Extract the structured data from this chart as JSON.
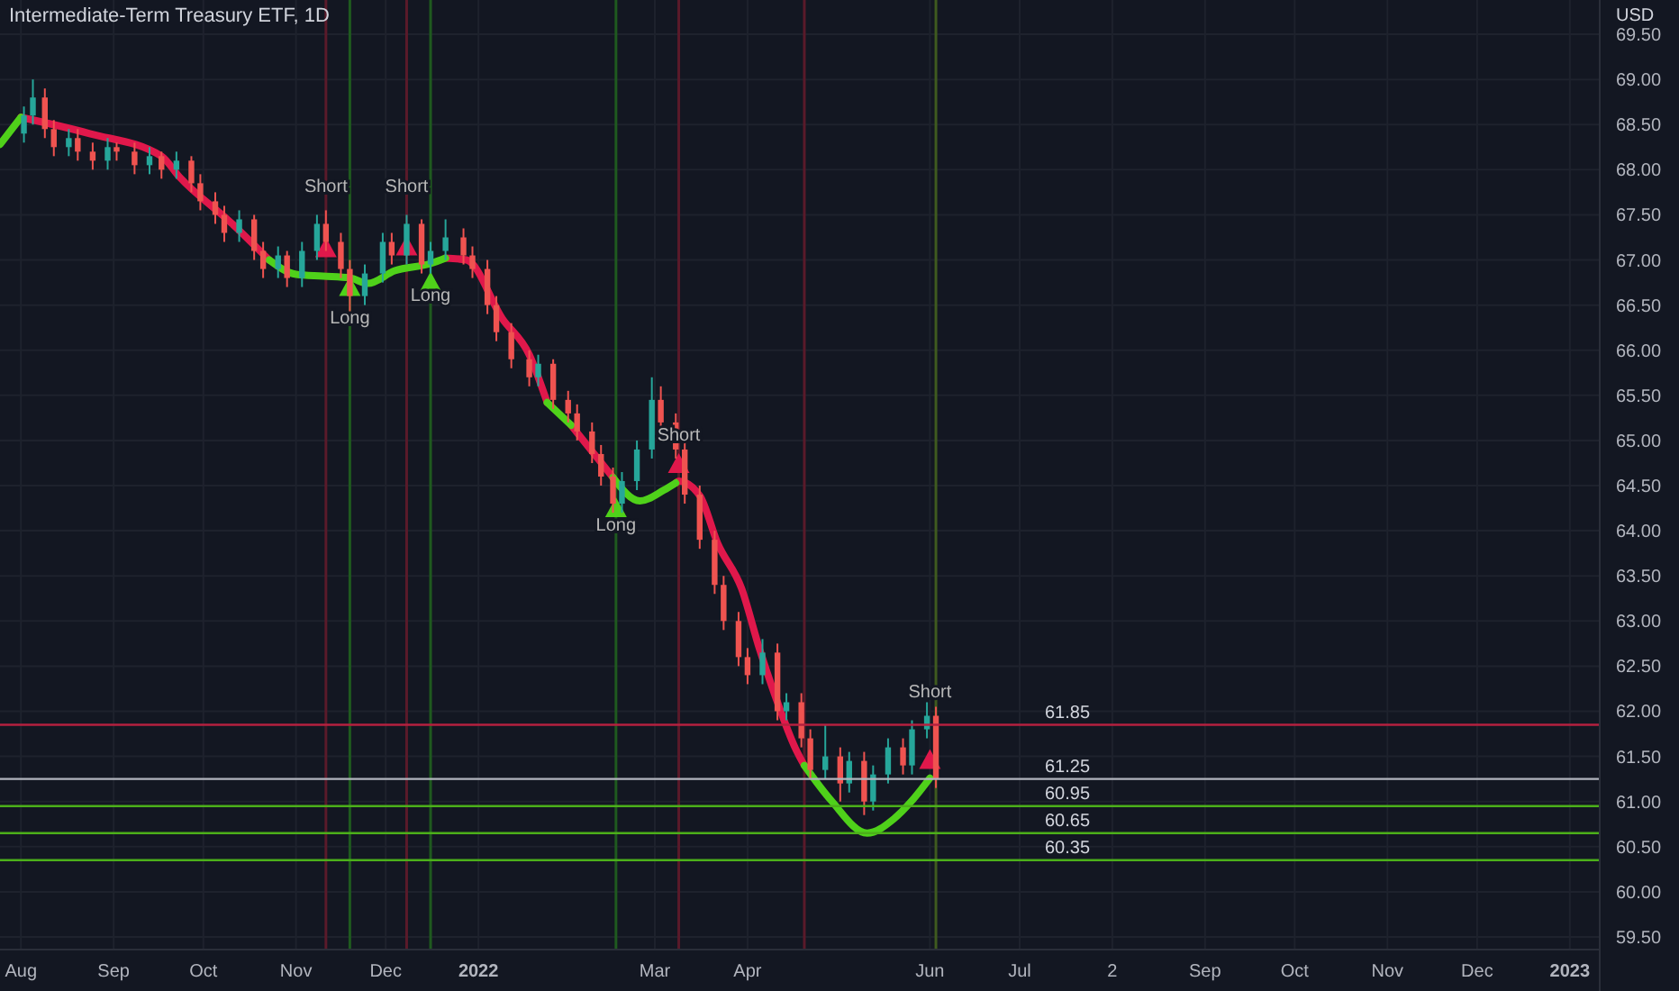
{
  "chart_data": {
    "type": "candlestick",
    "title": "Intermediate-Term Treasury ETF, 1D",
    "ylabel": "USD",
    "x": [
      "2021-08-02",
      "2021-08-05",
      "2021-08-09",
      "2021-08-12",
      "2021-08-17",
      "2021-08-20",
      "2021-08-25",
      "2021-08-30",
      "2021-09-02",
      "2021-09-08",
      "2021-09-13",
      "2021-09-17",
      "2021-09-22",
      "2021-09-27",
      "2021-09-30",
      "2021-10-05",
      "2021-10-08",
      "2021-10-13",
      "2021-10-18",
      "2021-10-21",
      "2021-10-26",
      "2021-10-29",
      "2021-11-03",
      "2021-11-08",
      "2021-11-11",
      "2021-11-16",
      "2021-11-19",
      "2021-11-24",
      "2021-11-30",
      "2021-12-03",
      "2021-12-08",
      "2021-12-13",
      "2021-12-16",
      "2021-12-21",
      "2021-12-27",
      "2021-12-30",
      "2022-01-04",
      "2022-01-07",
      "2022-01-12",
      "2022-01-18",
      "2022-01-21",
      "2022-01-26",
      "2022-01-31",
      "2022-02-03",
      "2022-02-08",
      "2022-02-11",
      "2022-02-15",
      "2022-02-18",
      "2022-02-23",
      "2022-02-28",
      "2022-03-03",
      "2022-03-08",
      "2022-03-11",
      "2022-03-16",
      "2022-03-21",
      "2022-03-24",
      "2022-03-29",
      "2022-04-01",
      "2022-04-06",
      "2022-04-11",
      "2022-04-14",
      "2022-04-19",
      "2022-04-22",
      "2022-04-27",
      "2022-05-02",
      "2022-05-05",
      "2022-05-10",
      "2022-05-13",
      "2022-05-18",
      "2022-05-23",
      "2022-05-26",
      "2022-05-31",
      "2022-06-03"
    ],
    "ohlc": [
      [
        68.4,
        68.7,
        68.3,
        68.6
      ],
      [
        68.6,
        69.0,
        68.5,
        68.8
      ],
      [
        68.8,
        68.9,
        68.35,
        68.45
      ],
      [
        68.45,
        68.55,
        68.15,
        68.25
      ],
      [
        68.25,
        68.45,
        68.15,
        68.35
      ],
      [
        68.35,
        68.45,
        68.1,
        68.2
      ],
      [
        68.2,
        68.3,
        68.0,
        68.1
      ],
      [
        68.1,
        68.35,
        68.0,
        68.25
      ],
      [
        68.25,
        68.3,
        68.1,
        68.2
      ],
      [
        68.2,
        68.3,
        67.95,
        68.05
      ],
      [
        68.05,
        68.25,
        67.95,
        68.15
      ],
      [
        68.15,
        68.2,
        67.9,
        68.0
      ],
      [
        68.0,
        68.2,
        67.9,
        68.1
      ],
      [
        68.1,
        68.15,
        67.75,
        67.85
      ],
      [
        67.85,
        67.95,
        67.55,
        67.65
      ],
      [
        67.65,
        67.75,
        67.4,
        67.5
      ],
      [
        67.5,
        67.6,
        67.2,
        67.3
      ],
      [
        67.3,
        67.55,
        67.2,
        67.45
      ],
      [
        67.45,
        67.5,
        67.0,
        67.1
      ],
      [
        67.1,
        67.2,
        66.8,
        66.9
      ],
      [
        66.9,
        67.15,
        66.8,
        67.05
      ],
      [
        67.05,
        67.1,
        66.7,
        66.8
      ],
      [
        66.8,
        67.2,
        66.7,
        67.1
      ],
      [
        67.1,
        67.5,
        67.0,
        67.4
      ],
      [
        67.4,
        67.55,
        67.1,
        67.2
      ],
      [
        67.2,
        67.3,
        66.8,
        66.9
      ],
      [
        66.9,
        67.0,
        66.4,
        66.6
      ],
      [
        66.6,
        66.95,
        66.5,
        66.85
      ],
      [
        66.85,
        67.3,
        66.75,
        67.2
      ],
      [
        67.2,
        67.3,
        66.95,
        67.05
      ],
      [
        67.05,
        67.5,
        66.95,
        67.4
      ],
      [
        67.4,
        67.45,
        66.85,
        66.95
      ],
      [
        66.95,
        67.2,
        66.85,
        67.1
      ],
      [
        67.1,
        67.45,
        67.0,
        67.25
      ],
      [
        67.25,
        67.35,
        66.95,
        67.05
      ],
      [
        67.05,
        67.15,
        66.8,
        66.9
      ],
      [
        66.9,
        67.0,
        66.4,
        66.5
      ],
      [
        66.5,
        66.6,
        66.1,
        66.2
      ],
      [
        66.2,
        66.3,
        65.8,
        65.9
      ],
      [
        65.9,
        66.0,
        65.6,
        65.7
      ],
      [
        65.7,
        65.95,
        65.6,
        65.85
      ],
      [
        65.85,
        65.9,
        65.35,
        65.45
      ],
      [
        65.45,
        65.55,
        65.2,
        65.3
      ],
      [
        65.3,
        65.4,
        65.0,
        65.1
      ],
      [
        65.1,
        65.2,
        64.75,
        64.85
      ],
      [
        64.85,
        64.95,
        64.5,
        64.6
      ],
      [
        64.6,
        64.7,
        64.2,
        64.3
      ],
      [
        64.3,
        64.65,
        64.2,
        64.55
      ],
      [
        64.55,
        65.0,
        64.45,
        64.9
      ],
      [
        64.9,
        65.7,
        64.8,
        65.45
      ],
      [
        65.45,
        65.6,
        65.1,
        65.2
      ],
      [
        65.2,
        65.3,
        64.8,
        64.9
      ],
      [
        64.9,
        65.0,
        64.3,
        64.4
      ],
      [
        64.4,
        64.5,
        63.8,
        63.9
      ],
      [
        63.9,
        64.0,
        63.3,
        63.4
      ],
      [
        63.4,
        63.5,
        62.9,
        63.0
      ],
      [
        63.0,
        63.1,
        62.5,
        62.6
      ],
      [
        62.6,
        62.7,
        62.3,
        62.4
      ],
      [
        62.4,
        62.8,
        62.3,
        62.65
      ],
      [
        62.65,
        62.75,
        61.9,
        62.0
      ],
      [
        62.0,
        62.2,
        61.9,
        62.1
      ],
      [
        62.1,
        62.2,
        61.6,
        61.7
      ],
      [
        61.7,
        61.8,
        61.25,
        61.35
      ],
      [
        61.35,
        61.85,
        61.25,
        61.5
      ],
      [
        61.5,
        61.6,
        61.0,
        61.2
      ],
      [
        61.2,
        61.55,
        61.1,
        61.45
      ],
      [
        61.45,
        61.55,
        60.85,
        61.0
      ],
      [
        61.0,
        61.4,
        60.9,
        61.3
      ],
      [
        61.3,
        61.7,
        61.2,
        61.6
      ],
      [
        61.6,
        61.7,
        61.3,
        61.4
      ],
      [
        61.4,
        61.9,
        61.3,
        61.8
      ],
      [
        61.8,
        62.1,
        61.7,
        61.95
      ],
      [
        61.95,
        62.05,
        61.15,
        61.25
      ]
    ],
    "series": [
      {
        "type": "line",
        "color": "#e0184b",
        "x": [
          "2021-08-01",
          "2021-08-24",
          "2021-09-17",
          "2021-09-23",
          "2021-10-11",
          "2021-10-23",
          "2021-11-10",
          "2021-12-21",
          "2021-12-28",
          "2022-01-09",
          "2022-01-18",
          "2022-01-24",
          "2022-01-28",
          "2022-02-01",
          "2022-02-15",
          "2022-02-20",
          "2022-03-08",
          "2022-03-09",
          "2022-03-16",
          "2022-03-22",
          "2022-03-30",
          "2022-04-05",
          "2022-04-11",
          "2022-04-17",
          "2022-04-20"
        ],
        "values": [
          68.58,
          68.4,
          68.15,
          67.92,
          67.39,
          67.0,
          null,
          67.02,
          67.0,
          66.35,
          65.95,
          65.42,
          null,
          65.17,
          64.59,
          null,
          64.53,
          64.55,
          64.39,
          63.86,
          63.36,
          62.69,
          62.1,
          61.59,
          61.4
        ]
      },
      {
        "type": "line",
        "color": "#4fd11a",
        "x": [
          "2021-07-25",
          "2021-08-01",
          "2021-08-10",
          "2021-10-23",
          "2021-11-01",
          "2021-11-10",
          "2021-11-19",
          "2021-11-25",
          "2021-12-04",
          "2021-12-16",
          "2021-12-21",
          "2021-12-25",
          "2022-01-24",
          "2022-02-01",
          "2022-02-08",
          "2022-02-15",
          "2022-02-24",
          "2022-03-04",
          "2022-03-08",
          "2022-03-14",
          "2022-04-20",
          "2022-04-29",
          "2022-05-11",
          "2022-05-20",
          "2022-05-26",
          "2022-06-01"
        ],
        "values": [
          68.28,
          68.58,
          null,
          67.0,
          66.84,
          66.82,
          66.8,
          66.74,
          66.88,
          66.96,
          67.02,
          null,
          65.42,
          65.17,
          null,
          64.59,
          64.33,
          64.45,
          64.53,
          null,
          61.4,
          61.01,
          60.65,
          60.81,
          61.01,
          61.26
        ]
      },
      {
        "type": "scatter",
        "marker": "triangle",
        "color": "#4fd11a",
        "x": [
          "2021-11-19",
          "2021-12-16",
          "2022-02-16"
        ],
        "values": [
          66.7,
          66.75,
          64.25
        ]
      },
      {
        "type": "scatter",
        "marker": "triangle",
        "color": "#e0184b",
        "x": [
          "2021-11-11",
          "2021-12-08",
          "2022-03-09",
          "2022-06-01"
        ],
        "values": [
          67.13,
          67.15,
          64.74,
          61.46
        ]
      }
    ],
    "annotations": [
      {
        "text": "Short",
        "x": "2021-11-11",
        "y": 67.75
      },
      {
        "text": "Short",
        "x": "2021-12-08",
        "y": 67.75
      },
      {
        "text": "Long",
        "x": "2021-11-19",
        "y": 66.3
      },
      {
        "text": "Long",
        "x": "2021-12-16",
        "y": 66.55
      },
      {
        "text": "Long",
        "x": "2022-02-16",
        "y": 64.0
      },
      {
        "text": "Short",
        "x": "2022-03-09",
        "y": 65.0
      },
      {
        "text": "Short",
        "x": "2022-06-01",
        "y": 62.15
      }
    ],
    "ref_lines": [
      {
        "axis": "y",
        "value": 61.85,
        "label": "61.85",
        "color": "#b5203f"
      },
      {
        "axis": "y",
        "value": 61.25,
        "label": "61.25",
        "color": "#b2b5be"
      },
      {
        "axis": "y",
        "value": 60.95,
        "label": "60.95",
        "color": "#4caf1a"
      },
      {
        "axis": "y",
        "value": 60.65,
        "label": "60.65",
        "color": "#4caf1a"
      },
      {
        "axis": "y",
        "value": 60.35,
        "label": "60.35",
        "color": "#4caf1a"
      },
      {
        "axis": "x",
        "value": "2021-11-11",
        "color": "#5a1a2a"
      },
      {
        "axis": "x",
        "value": "2021-11-19",
        "color": "#1f5a1f"
      },
      {
        "axis": "x",
        "value": "2021-12-08",
        "color": "#5a1a2a"
      },
      {
        "axis": "x",
        "value": "2021-12-16",
        "color": "#1f5a1f"
      },
      {
        "axis": "x",
        "value": "2022-02-16",
        "color": "#1f5a1f"
      },
      {
        "axis": "x",
        "value": "2022-03-09",
        "color": "#5a1a2a"
      },
      {
        "axis": "x",
        "value": "2022-04-20",
        "color": "#5a1a2a"
      },
      {
        "axis": "x",
        "value": "2022-06-03",
        "color": "#3f5a1f"
      }
    ],
    "xlim": [
      "2021-07-25",
      "2023-01-11"
    ],
    "xticks": [
      {
        "value": "2021-08-01",
        "label": "Aug"
      },
      {
        "value": "2021-09-01",
        "label": "Sep"
      },
      {
        "value": "2021-10-01",
        "label": "Oct"
      },
      {
        "value": "2021-11-01",
        "label": "Nov"
      },
      {
        "value": "2021-12-01",
        "label": "Dec"
      },
      {
        "value": "2022-01-01",
        "label": "2022"
      },
      {
        "value": "2022-03-01",
        "label": "Mar"
      },
      {
        "value": "2022-04-01",
        "label": "Apr"
      },
      {
        "value": "2022-06-01",
        "label": "Jun"
      },
      {
        "value": "2022-07-01",
        "label": "Jul"
      },
      {
        "value": "2022-08-01",
        "label": "2"
      },
      {
        "value": "2022-09-01",
        "label": "Sep"
      },
      {
        "value": "2022-10-01",
        "label": "Oct"
      },
      {
        "value": "2022-11-01",
        "label": "Nov"
      },
      {
        "value": "2022-12-01",
        "label": "Dec"
      },
      {
        "value": "2023-01-01",
        "label": "2023"
      }
    ],
    "ylim": [
      59.36,
      69.88
    ],
    "yticks": [
      {
        "value": 59.5,
        "label": "59.50"
      },
      {
        "value": 60,
        "label": "60.00"
      },
      {
        "value": 60.5,
        "label": "60.50"
      },
      {
        "value": 61,
        "label": "61.00"
      },
      {
        "value": 61.5,
        "label": "61.50"
      },
      {
        "value": 62,
        "label": "62.00"
      },
      {
        "value": 62.5,
        "label": "62.50"
      },
      {
        "value": 63,
        "label": "63.00"
      },
      {
        "value": 63.5,
        "label": "63.50"
      },
      {
        "value": 64,
        "label": "64.00"
      },
      {
        "value": 64.5,
        "label": "64.50"
      },
      {
        "value": 65,
        "label": "65.00"
      },
      {
        "value": 65.5,
        "label": "65.50"
      },
      {
        "value": 66,
        "label": "66.00"
      },
      {
        "value": 66.5,
        "label": "66.50"
      },
      {
        "value": 67,
        "label": "67.00"
      },
      {
        "value": 67.5,
        "label": "67.50"
      },
      {
        "value": 68,
        "label": "68.00"
      },
      {
        "value": 68.5,
        "label": "68.50"
      },
      {
        "value": 69,
        "label": "69.00"
      },
      {
        "value": 69.5,
        "label": "69.50"
      }
    ],
    "grid": true
  }
}
